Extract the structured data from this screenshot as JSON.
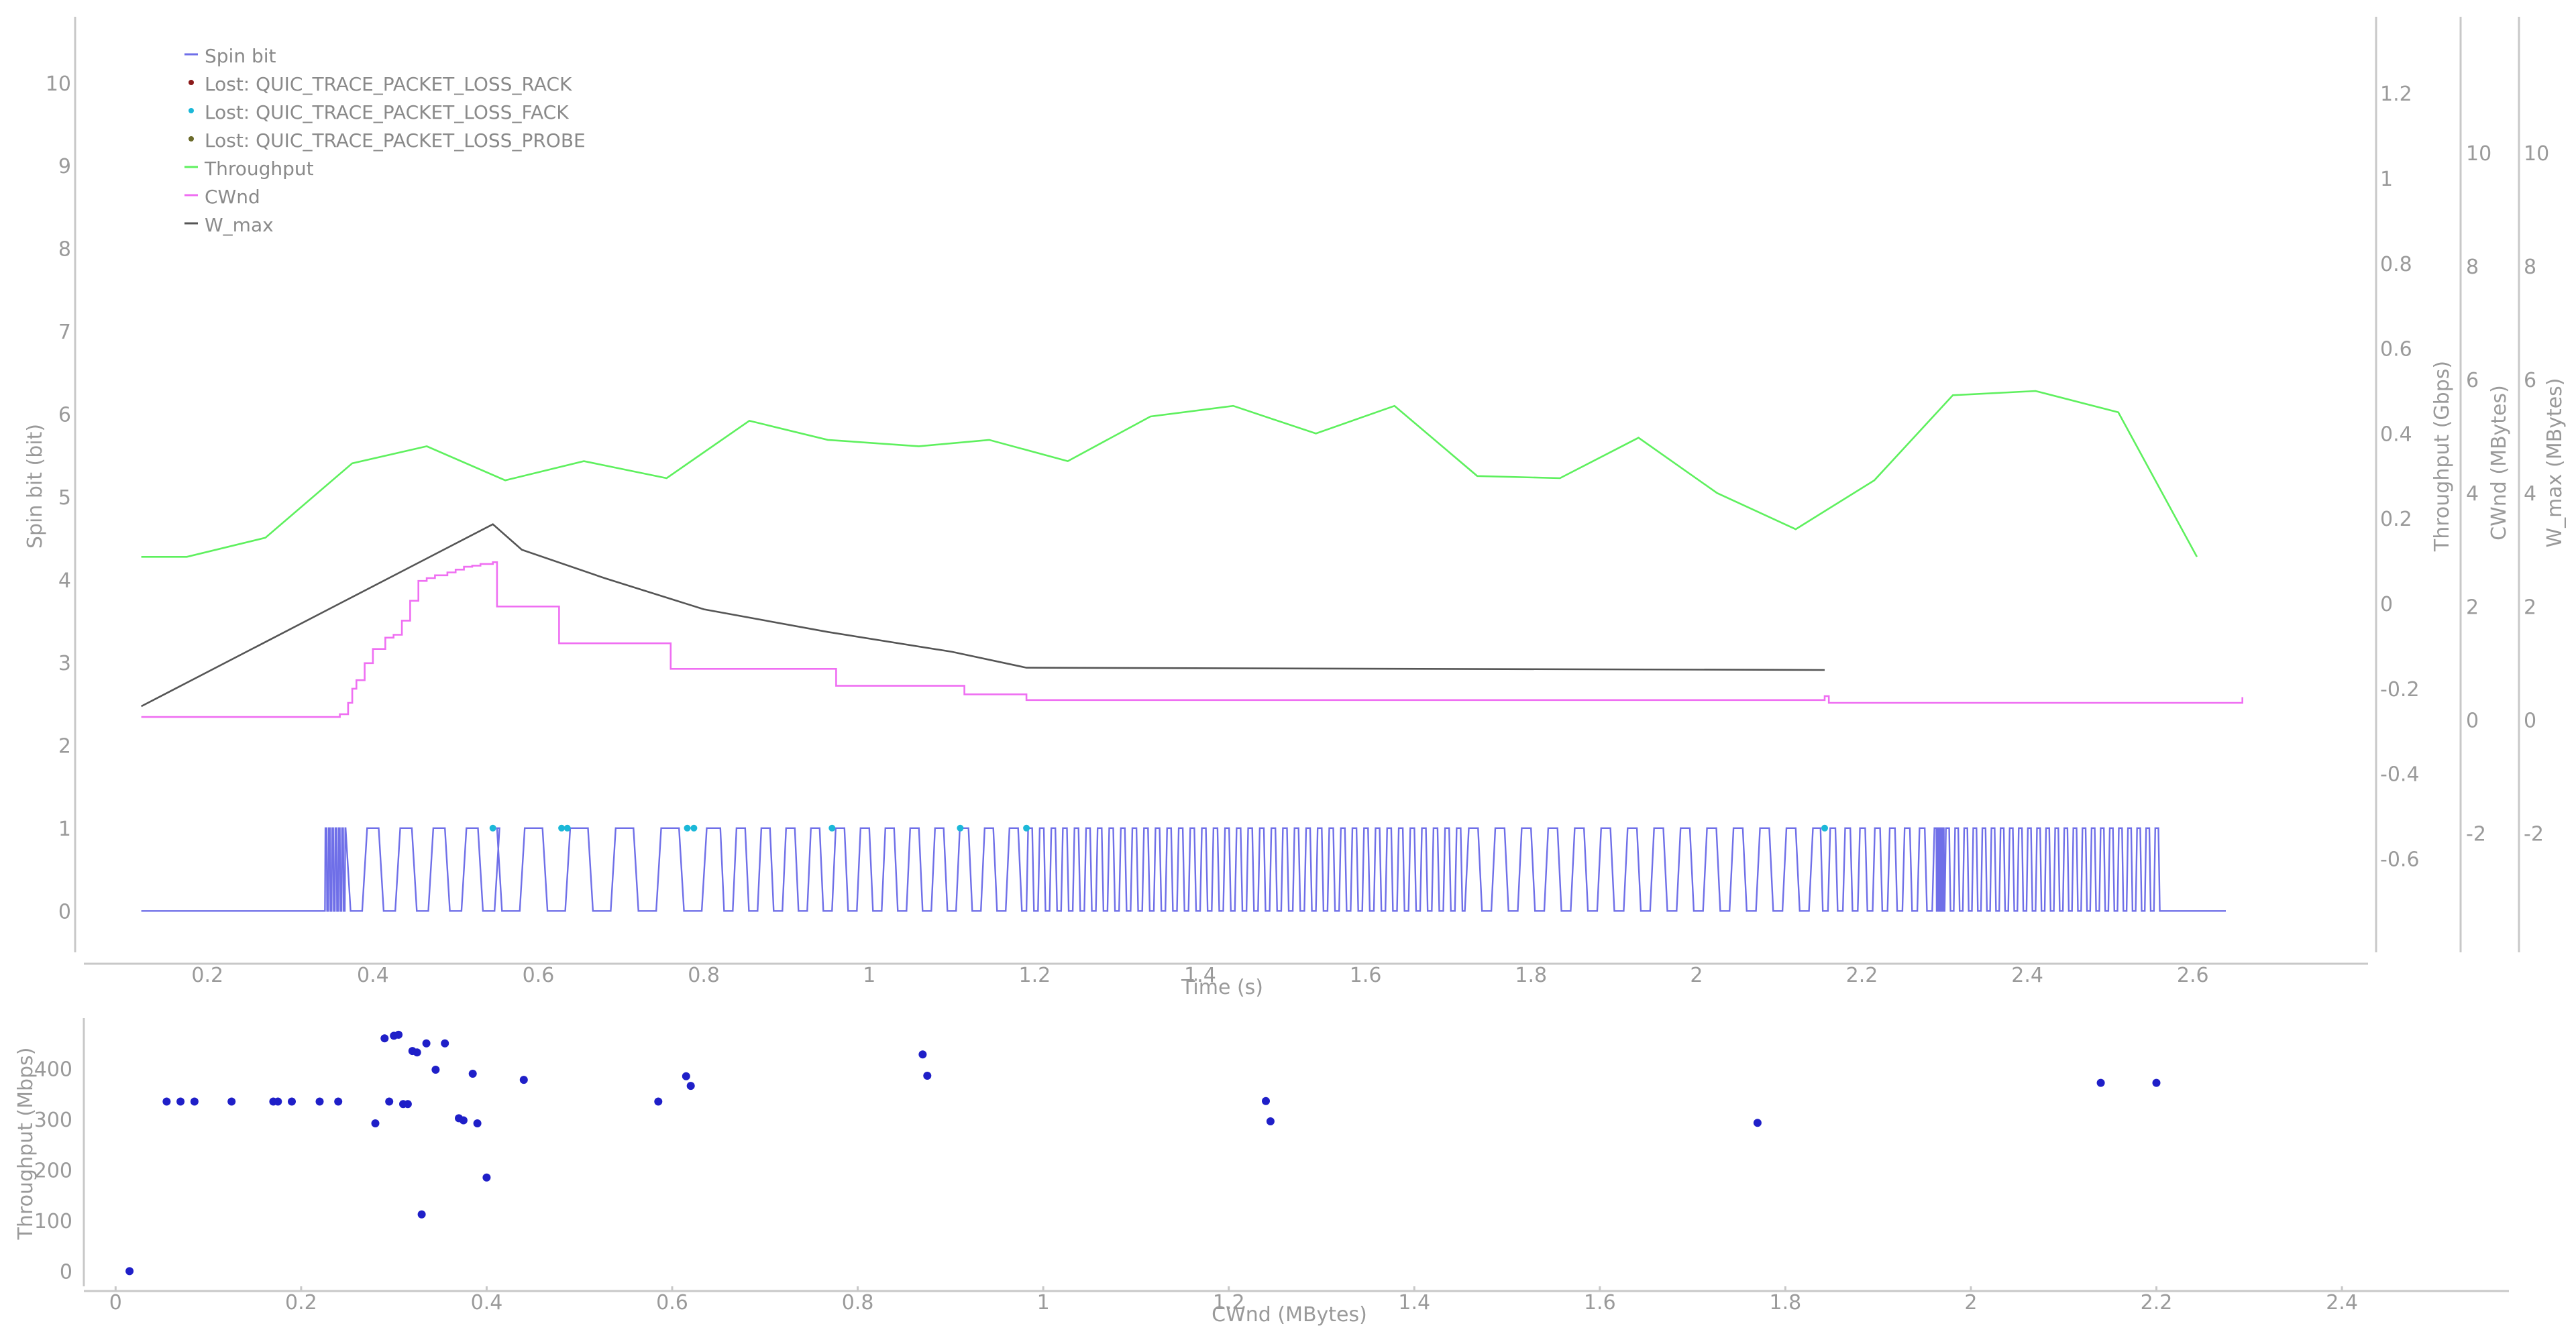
{
  "colors": {
    "spin": "#6f6fe8",
    "rack": "#8b1a1a",
    "fack": "#1bb8d8",
    "probe": "#6b6b2a",
    "throughput": "#5ef05e",
    "cwnd": "#ef6ff2",
    "wmax": "#555555",
    "scatter": "#1f1fc8",
    "axis": "#c8c8c8",
    "text": "#9a9a9a"
  },
  "chart_data": [
    {
      "type": "line",
      "title": "",
      "xlabel": "Time (s)",
      "xlim": [
        0.04,
        2.82
      ],
      "xticks": [
        0.2,
        0.4,
        0.6,
        0.8,
        1,
        1.2,
        1.4,
        1.6,
        1.8,
        2,
        2.2,
        2.4,
        2.6
      ],
      "axes": {
        "spin": {
          "label": "Spin bit (bit)",
          "lim": [
            -0.5,
            10.8
          ],
          "ticks": [
            0,
            1,
            2,
            3,
            4,
            5,
            6,
            7,
            8,
            9,
            10
          ]
        },
        "throughput": {
          "label": "Throughput (Gbps)",
          "lim": [
            -0.82,
            1.38
          ],
          "ticks": [
            -0.6,
            -0.4,
            -0.2,
            0,
            0.2,
            0.4,
            0.6,
            0.8,
            1,
            1.2
          ]
        },
        "cwnd": {
          "label": "CWnd (MBytes)",
          "lim": [
            -4.1,
            12.4
          ],
          "ticks": [
            -2,
            0,
            2,
            4,
            6,
            8,
            10
          ]
        },
        "wmax": {
          "label": "W_max (MBytes)",
          "lim": [
            -4.1,
            12.4
          ],
          "ticks": [
            -2,
            0,
            2,
            4,
            6,
            8,
            10
          ]
        }
      },
      "legend_position": "top-left",
      "legend": [
        {
          "label": "Spin bit",
          "kind": "line",
          "color_key": "spin"
        },
        {
          "label": "Lost: QUIC_TRACE_PACKET_LOSS_RACK",
          "kind": "dot",
          "color_key": "rack"
        },
        {
          "label": "Lost: QUIC_TRACE_PACKET_LOSS_FACK",
          "kind": "dot",
          "color_key": "fack"
        },
        {
          "label": "Lost: QUIC_TRACE_PACKET_LOSS_PROBE",
          "kind": "dot",
          "color_key": "probe"
        },
        {
          "label": "Throughput",
          "kind": "line",
          "color_key": "throughput"
        },
        {
          "label": "CWnd",
          "kind": "line",
          "color_key": "cwnd"
        },
        {
          "label": "W_max",
          "kind": "line",
          "color_key": "wmax"
        }
      ],
      "series": {
        "spin_bit": {
          "name": "Spin bit",
          "start": 0.12,
          "segments": [
            {
              "from": 0.342,
              "to": 0.367,
              "period": 0.004
            },
            {
              "from": 0.367,
              "to": 0.55,
              "period": 0.04
            },
            {
              "from": 0.55,
              "to": 0.82,
              "period": 0.055
            },
            {
              "from": 0.82,
              "to": 1.19,
              "period": 0.03
            },
            {
              "from": 1.19,
              "to": 1.72,
              "period": 0.014
            },
            {
              "from": 1.72,
              "to": 2.15,
              "period": 0.032
            },
            {
              "from": 2.15,
              "to": 2.29,
              "period": 0.018
            },
            {
              "from": 2.29,
              "to": 2.3,
              "period": 0.003
            },
            {
              "from": 2.3,
              "to": 2.56,
              "period": 0.011
            }
          ],
          "end": 2.64
        },
        "loss_fack": {
          "name": "Lost: QUIC_TRACE_PACKET_LOSS_FACK",
          "x": [
            0.545,
            0.628,
            0.635,
            0.78,
            0.788,
            0.955,
            1.11,
            1.19,
            2.155
          ],
          "y": 1
        },
        "throughput": {
          "name": "Throughput",
          "x": [
            0.12,
            0.175,
            0.27,
            0.375,
            0.465,
            0.56,
            0.655,
            0.755,
            0.855,
            0.95,
            1.06,
            1.145,
            1.24,
            1.34,
            1.44,
            1.54,
            1.635,
            1.735,
            1.835,
            1.93,
            2.025,
            2.12,
            2.215,
            2.31,
            2.41,
            2.51,
            2.605
          ],
          "y": [
            0.11,
            0.11,
            0.155,
            0.33,
            0.37,
            0.29,
            0.335,
            0.295,
            0.43,
            0.385,
            0.37,
            0.385,
            0.335,
            0.44,
            0.465,
            0.4,
            0.465,
            0.3,
            0.295,
            0.39,
            0.26,
            0.175,
            0.29,
            0.49,
            0.5,
            0.45,
            0.11
          ]
        },
        "cwnd": {
          "name": "CWnd",
          "x": [
            0.12,
            0.35,
            0.36,
            0.37,
            0.375,
            0.38,
            0.39,
            0.4,
            0.415,
            0.425,
            0.435,
            0.445,
            0.455,
            0.465,
            0.475,
            0.49,
            0.5,
            0.51,
            0.52,
            0.53,
            0.545,
            0.55,
            0.62,
            0.625,
            0.75,
            0.76,
            0.95,
            0.96,
            1.105,
            1.115,
            1.19,
            2.155,
            2.16,
            2.66
          ],
          "y": [
            0.05,
            0.05,
            0.1,
            0.3,
            0.55,
            0.7,
            1.0,
            1.25,
            1.45,
            1.5,
            1.75,
            2.1,
            2.45,
            2.5,
            2.55,
            2.6,
            2.65,
            2.7,
            2.72,
            2.75,
            2.78,
            2.0,
            2.0,
            1.35,
            1.35,
            0.9,
            0.9,
            0.6,
            0.6,
            0.45,
            0.35,
            0.42,
            0.3,
            0.4
          ]
        },
        "wmax": {
          "name": "W_max",
          "x": [
            0.12,
            0.545,
            0.58,
            0.68,
            0.8,
            0.95,
            1.1,
            1.19,
            2.155
          ],
          "y": [
            0.24,
            3.45,
            3.0,
            2.5,
            1.95,
            1.55,
            1.2,
            0.92,
            0.88
          ]
        }
      }
    },
    {
      "type": "scatter",
      "title": "",
      "xlabel": "CWnd (MBytes)",
      "ylabel": "Throughput (Mbps)",
      "xlim": [
        -0.04,
        2.58
      ],
      "ylim": [
        -30,
        500
      ],
      "xticks": [
        0,
        0.2,
        0.4,
        0.6,
        0.8,
        1,
        1.2,
        1.4,
        1.6,
        1.8,
        2,
        2.2,
        2.4
      ],
      "yticks": [
        0,
        100,
        200,
        300,
        400
      ],
      "points": [
        [
          0.015,
          0
        ],
        [
          0.055,
          335
        ],
        [
          0.07,
          335
        ],
        [
          0.085,
          335
        ],
        [
          0.125,
          335
        ],
        [
          0.17,
          335
        ],
        [
          0.175,
          335
        ],
        [
          0.19,
          335
        ],
        [
          0.22,
          335
        ],
        [
          0.24,
          335
        ],
        [
          0.28,
          292
        ],
        [
          0.29,
          460
        ],
        [
          0.3,
          465
        ],
        [
          0.305,
          467
        ],
        [
          0.295,
          335
        ],
        [
          0.31,
          330
        ],
        [
          0.315,
          330
        ],
        [
          0.32,
          435
        ],
        [
          0.325,
          432
        ],
        [
          0.33,
          112
        ],
        [
          0.335,
          450
        ],
        [
          0.345,
          398
        ],
        [
          0.355,
          450
        ],
        [
          0.37,
          302
        ],
        [
          0.375,
          298
        ],
        [
          0.385,
          390
        ],
        [
          0.39,
          292
        ],
        [
          0.4,
          185
        ],
        [
          0.44,
          378
        ],
        [
          0.585,
          335
        ],
        [
          0.615,
          385
        ],
        [
          0.62,
          366
        ],
        [
          0.87,
          428
        ],
        [
          0.875,
          386
        ],
        [
          1.24,
          336
        ],
        [
          1.245,
          296
        ],
        [
          1.77,
          293
        ],
        [
          2.14,
          372
        ],
        [
          2.2,
          372
        ]
      ]
    }
  ]
}
